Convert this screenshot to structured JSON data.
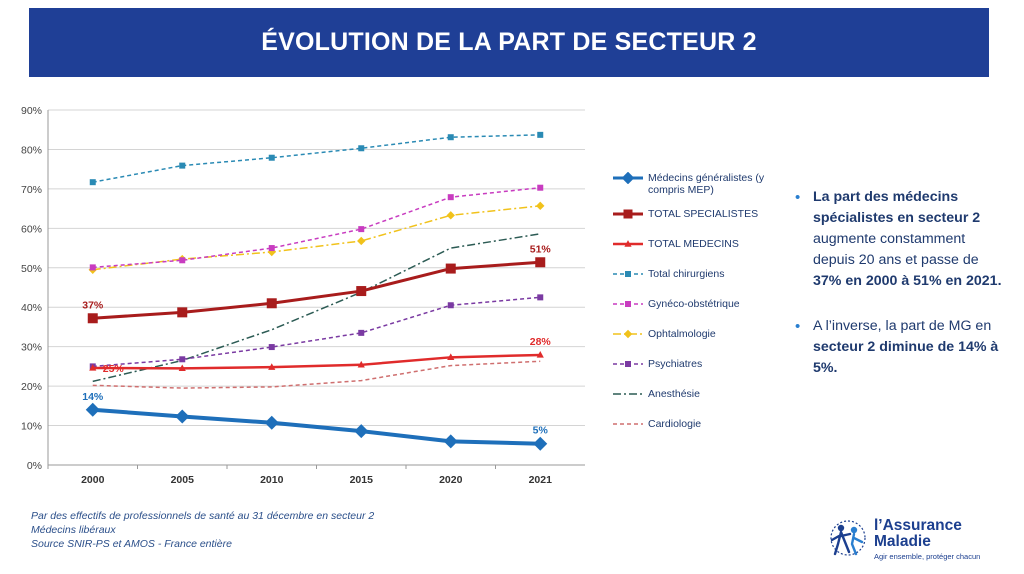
{
  "title": "ÉVOLUTION DE LA PART DE SECTEUR 2",
  "colors": {
    "banner": "#1f3f96",
    "text": "#1f3a6e",
    "bullet": "#2a7fd0"
  },
  "chart_data": {
    "type": "line",
    "x": [
      "2000",
      "2005",
      "2010",
      "2015",
      "2020",
      "2021"
    ],
    "ylim": [
      0,
      90
    ],
    "yticks": [
      "0%",
      "10%",
      "20%",
      "30%",
      "40%",
      "50%",
      "60%",
      "70%",
      "80%",
      "90%"
    ],
    "grid": true,
    "legend_position": "right",
    "series": [
      {
        "name": "Médecins généralistes (y compris MEP)",
        "color": "#1e6fba",
        "style": "solid",
        "width": 4,
        "marker": "diamond",
        "values": [
          14,
          12.3,
          10.7,
          8.6,
          6,
          5.4
        ]
      },
      {
        "name": "TOTAL SPECIALISTES",
        "color": "#a81c1c",
        "style": "solid",
        "width": 3,
        "marker": "square",
        "values": [
          37.2,
          38.7,
          41,
          44.1,
          49.8,
          51.4
        ]
      },
      {
        "name": "TOTAL MEDECINS",
        "color": "#e02b2b",
        "style": "solid",
        "width": 2.5,
        "marker": "triangle",
        "values": [
          24.6,
          24.5,
          24.8,
          25.4,
          27.3,
          27.9
        ]
      },
      {
        "name": "Total chirurgiens",
        "color": "#2a8ab4",
        "style": "dashed",
        "width": 1.5,
        "marker": "square",
        "values": [
          71.7,
          75.9,
          77.9,
          80.3,
          83.1,
          83.7
        ]
      },
      {
        "name": "Gynéco-obstétrique",
        "color": "#c83cc0",
        "style": "dashed",
        "width": 1.5,
        "marker": "square",
        "values": [
          50.1,
          51.9,
          55,
          59.8,
          67.9,
          70.3
        ]
      },
      {
        "name": "Ophtalmologie",
        "color": "#f1c21b",
        "style": "dashdot",
        "width": 1.5,
        "marker": "diamond",
        "values": [
          49.5,
          52.2,
          54,
          56.8,
          63.3,
          65.7
        ]
      },
      {
        "name": "Psychiatres",
        "color": "#7a3aa2",
        "style": "dashed",
        "width": 1.5,
        "marker": "square",
        "values": [
          25,
          26.8,
          29.9,
          33.5,
          40.5,
          42.5
        ]
      },
      {
        "name": "Anesthésie",
        "color": "#2c5b54",
        "style": "dashdot",
        "width": 1.5,
        "marker": "none",
        "values": [
          21.2,
          26.5,
          34.3,
          43.8,
          55,
          58.6
        ]
      },
      {
        "name": "Cardiologie",
        "color": "#cf6f6f",
        "style": "dashed",
        "width": 1.5,
        "marker": "none",
        "values": [
          20.2,
          19.5,
          19.8,
          21.4,
          25.2,
          26.3
        ]
      }
    ],
    "annotations": [
      {
        "text": "37%",
        "x": "2000",
        "y": 37.2,
        "color": "#a81c1c",
        "position": "above"
      },
      {
        "text": "51%",
        "x": "2021",
        "y": 51.4,
        "color": "#a81c1c",
        "position": "above"
      },
      {
        "text": "25%",
        "x": "2000",
        "y": 24.6,
        "color": "#e02b2b",
        "position": "right"
      },
      {
        "text": "28%",
        "x": "2021",
        "y": 27.9,
        "color": "#e02b2b",
        "position": "above"
      },
      {
        "text": "14%",
        "x": "2000",
        "y": 14,
        "color": "#1e6fba",
        "position": "above"
      },
      {
        "text": "5%",
        "x": "2021",
        "y": 5.4,
        "color": "#1e6fba",
        "position": "above"
      }
    ]
  },
  "bullets": [
    {
      "parts": [
        {
          "b": true,
          "t": "La part des médecins spécialistes en secteur 2"
        },
        {
          "b": false,
          "t": " augmente constamment depuis 20 ans et passe de "
        },
        {
          "b": true,
          "t": "37% en 2000 à 51% en 2021."
        }
      ]
    },
    {
      "parts": [
        {
          "b": false,
          "t": "A l’inverse, la part de MG en "
        },
        {
          "b": true,
          "t": "secteur 2 diminue de 14% à 5%."
        }
      ]
    }
  ],
  "footnotes": [
    "Par des effectifs de professionnels de santé au 31 décembre en secteur 2",
    "Médecins libéraux",
    "Source SNIR-PS et AMOS - France entière"
  ],
  "logo": {
    "name_line1": "l’Assurance",
    "name_line2": "Maladie",
    "tagline": "Agir ensemble, protéger chacun",
    "icon": "assurance-maladie-logo-icon"
  }
}
